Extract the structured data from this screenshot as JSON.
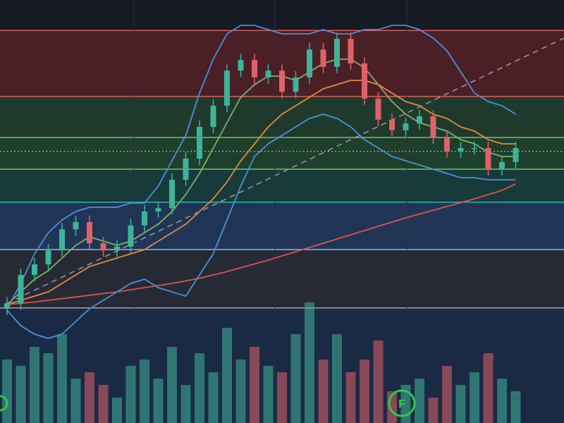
{
  "chart_data": {
    "type": "candlestick",
    "ylim": [
      0,
      100
    ],
    "y2lim": [
      0,
      100
    ],
    "up_color": "#3fb39a",
    "down_color": "#e0616a",
    "series": [
      {
        "open": [
          27,
          28.3,
          35,
          37.5,
          40.8,
          45.8,
          47.5,
          42.5,
          40.8,
          41.7,
          46.7,
          50,
          50.8,
          57.5,
          62.5,
          70,
          75,
          83.3,
          85.8,
          81.7,
          83.3,
          78.3,
          81.7,
          88.3,
          84.2,
          90.8,
          85,
          76.7,
          71.7,
          69.2,
          70.8,
          72.5,
          67.5,
          64.2,
          65,
          65,
          60,
          61.7
        ],
        "high": [
          29.8,
          36.5,
          39,
          42.3,
          47.3,
          49,
          49,
          44,
          43.2,
          48.2,
          51.5,
          52.3,
          59,
          64,
          71.5,
          76.5,
          84.8,
          87.3,
          87.3,
          84.8,
          84.8,
          83.2,
          89.8,
          89.8,
          92.3,
          92.3,
          86.5,
          78.2,
          73.2,
          72.3,
          74,
          74,
          69,
          66.5,
          66.5,
          66.5,
          63.2,
          66.5
        ],
        "low": [
          25.5,
          26.8,
          33.5,
          36,
          39.3,
          44.3,
          41,
          39.3,
          39.3,
          40.2,
          45.2,
          48.5,
          49.3,
          56,
          61,
          68.5,
          73.5,
          81.8,
          80.2,
          80.2,
          76.8,
          76.8,
          80.2,
          82.7,
          82.7,
          83.5,
          75.2,
          70.2,
          67.7,
          67.7,
          69.3,
          66,
          62.7,
          62.7,
          63.5,
          58.5,
          58.5,
          60.2
        ],
        "close": [
          28.3,
          35,
          37.5,
          40.8,
          45.8,
          47.5,
          42.5,
          40.8,
          41.7,
          46.7,
          50,
          50.8,
          57.5,
          62.5,
          70,
          75,
          83.3,
          85.8,
          81.7,
          83.3,
          78.3,
          81.7,
          88.3,
          84.2,
          90.8,
          85,
          76.7,
          71.7,
          69.2,
          70.8,
          72.5,
          67.5,
          64.2,
          65,
          65,
          60,
          61.7,
          65
        ],
        "volume": [
          50,
          45,
          60,
          55,
          70,
          35,
          40,
          30,
          20,
          45,
          50,
          35,
          60,
          30,
          55,
          40,
          75,
          50,
          60,
          45,
          40,
          70,
          95,
          50,
          70,
          40,
          50,
          65,
          25,
          30,
          35,
          20,
          45,
          30,
          40,
          55,
          35,
          25
        ]
      }
    ],
    "overlays": [
      {
        "color": "#7fb069",
        "values": [
          28,
          31,
          34,
          36,
          39,
          42,
          44,
          43,
          42,
          43,
          45,
          47,
          50,
          54,
          59,
          65,
          71,
          77,
          80,
          82,
          82,
          81,
          83,
          85,
          86,
          86,
          84,
          80,
          76,
          73,
          71,
          70,
          69,
          67,
          66,
          64,
          63,
          63
        ]
      },
      {
        "color": "#e08a3c",
        "values": [
          28,
          29,
          30,
          31,
          33,
          35,
          37,
          38,
          39,
          40,
          41,
          43,
          45,
          47,
          50,
          53,
          57,
          62,
          66,
          70,
          73,
          75,
          77,
          79,
          80,
          81,
          81,
          80,
          78,
          76,
          75,
          73,
          72,
          70,
          69,
          67,
          66,
          66
        ]
      },
      {
        "color": "#d9534f",
        "values": [
          28,
          28.3,
          28.6,
          29,
          29.4,
          29.8,
          30.2,
          30.6,
          31,
          31.5,
          32,
          32.5,
          33,
          33.6,
          34.2,
          35,
          35.8,
          36.7,
          37.6,
          38.5,
          39.5,
          40.5,
          41.5,
          42.5,
          43.5,
          44.5,
          45.5,
          46.5,
          47.5,
          48.5,
          49.4,
          50.3,
          51.2,
          52.1,
          53,
          54,
          55,
          56.5
        ]
      },
      {
        "color": "#4a90d9",
        "values": [
          27,
          33,
          40,
          45,
          48,
          50,
          51,
          51,
          51,
          52,
          52,
          56,
          62,
          68,
          78,
          86,
          92,
          94,
          94,
          93,
          92,
          92,
          92,
          93,
          92,
          92,
          93,
          93,
          94,
          94,
          93,
          91,
          88,
          83,
          78,
          76,
          75,
          73
        ]
      },
      {
        "color": "#4a90d9",
        "values": [
          26.7,
          23,
          21,
          20,
          21,
          24,
          27,
          29,
          31,
          33,
          34,
          32,
          31,
          30,
          35,
          40,
          48,
          56,
          63,
          66,
          68,
          70,
          72,
          73,
          72,
          70,
          67,
          65,
          63,
          62,
          61,
          60,
          59,
          58,
          58,
          57.5,
          57.5,
          57.5
        ]
      }
    ],
    "levels": [
      {
        "value": 92.8,
        "color": "#e05a5a",
        "fill": "#4a1f26"
      },
      {
        "value": 77.2,
        "color": "#e05a5a",
        "fill": "#1f3a2c"
      },
      {
        "value": 67.5,
        "color": "#6cc56c",
        "fill": "#1e3f2c"
      },
      {
        "value": 60,
        "color": "#6cc56c",
        "fill": "#173a3a"
      },
      {
        "value": 52.2,
        "color": "#2fb8a5",
        "fill": "#203556"
      },
      {
        "value": 41,
        "color": "#8ab8ee",
        "fill": "#262a35"
      },
      {
        "value": 27.2,
        "color": "#a0a0a8",
        "fill": "#1b2a44"
      }
    ],
    "price_line": 64.2,
    "trend": [
      28.3,
      91
    ],
    "badges": [
      {
        "label": "F",
        "color": "#2ecc40"
      }
    ]
  }
}
